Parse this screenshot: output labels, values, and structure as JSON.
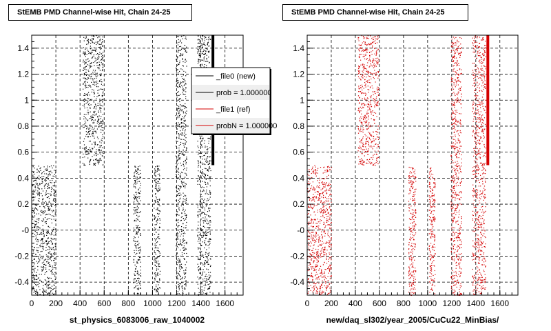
{
  "footnote": "",
  "chart_data": [
    {
      "type": "scatter",
      "title": "StEMB PMD Channel-wise Hit, Chain 24-25",
      "xlabel": "st_physics_6083006_raw_1040002",
      "ylabel": "",
      "xlim": [
        0,
        1750
      ],
      "ylim": [
        -0.5,
        1.5
      ],
      "xticks": [
        0,
        200,
        400,
        600,
        800,
        1000,
        1200,
        1400,
        1600
      ],
      "yticks": [
        -0.4,
        -0.2,
        0,
        0.2,
        0.4,
        0.6,
        0.8,
        1,
        1.2,
        1.4
      ],
      "ytick_labels": [
        "-0.4",
        "-0.2",
        "-0",
        "0.2",
        "0.4",
        "0.6",
        "0.8",
        "1",
        "1.2",
        "1.4"
      ],
      "grid": true,
      "marker_color": "#000000",
      "legend_placement": "top-right",
      "legend": [
        {
          "label": "_file0 (new)",
          "color": "#000000"
        },
        {
          "label": "prob = 1.000000",
          "color": "#000000"
        },
        {
          "label": "_file1 (ref)",
          "color": "#d40000"
        },
        {
          "label": "probN = 1.000000",
          "color": "#d40000"
        }
      ],
      "clusters": [
        {
          "x": [
            0,
            200
          ],
          "y": [
            -0.5,
            0.5
          ]
        },
        {
          "x": [
            420,
            590
          ],
          "y": [
            0.5,
            1.5
          ]
        },
        {
          "x": [
            840,
            900
          ],
          "y": [
            -0.5,
            0.5
          ]
        },
        {
          "x": [
            1010,
            1060
          ],
          "y": [
            -0.5,
            0.5
          ]
        },
        {
          "x": [
            1190,
            1280
          ],
          "y": [
            -0.5,
            1.5
          ]
        },
        {
          "x": [
            1370,
            1480
          ],
          "y": [
            -0.5,
            1.5
          ]
        }
      ],
      "thick_line": {
        "x": 1500,
        "y": [
          0.5,
          1.5
        ]
      }
    },
    {
      "type": "scatter",
      "title": "StEMB PMD Channel-wise Hit, Chain 24-25",
      "xlabel": "new/daq_sl302/year_2005/CuCu22_MinBias/",
      "ylabel": "",
      "xlim": [
        0,
        1750
      ],
      "ylim": [
        -0.5,
        1.5
      ],
      "xticks": [
        0,
        200,
        400,
        600,
        800,
        1000,
        1200,
        1400,
        1600
      ],
      "yticks": [
        -0.4,
        -0.2,
        0,
        0.2,
        0.4,
        0.6,
        0.8,
        1,
        1.2,
        1.4
      ],
      "ytick_labels": [
        "-0.4",
        "-0.2",
        "-0",
        "0.2",
        "0.4",
        "0.6",
        "0.8",
        "1",
        "1.2",
        "1.4"
      ],
      "grid": true,
      "marker_color": "#d40000",
      "clusters": [
        {
          "x": [
            0,
            200
          ],
          "y": [
            -0.5,
            0.5
          ]
        },
        {
          "x": [
            420,
            590
          ],
          "y": [
            0.5,
            1.5
          ]
        },
        {
          "x": [
            840,
            900
          ],
          "y": [
            -0.5,
            0.5
          ]
        },
        {
          "x": [
            1010,
            1060
          ],
          "y": [
            -0.5,
            0.5
          ]
        },
        {
          "x": [
            1190,
            1280
          ],
          "y": [
            -0.5,
            1.5
          ]
        },
        {
          "x": [
            1370,
            1480
          ],
          "y": [
            -0.5,
            1.5
          ]
        }
      ],
      "thick_line": {
        "x": 1500,
        "y": [
          0.5,
          1.5
        ]
      }
    }
  ]
}
